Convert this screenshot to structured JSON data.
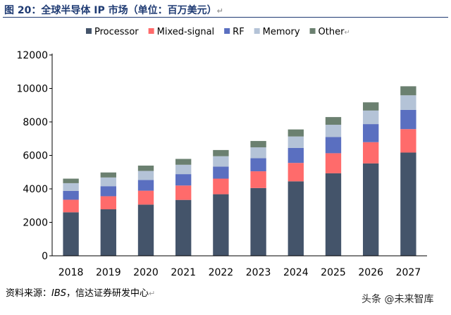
{
  "header": {
    "title": "图 20：全球半导体 IP 市场（单位：百万美元）",
    "title_mark": "↵"
  },
  "chart_data": {
    "type": "bar",
    "stacked": true,
    "categories": [
      "2018",
      "2019",
      "2020",
      "2021",
      "2022",
      "2023",
      "2024",
      "2025",
      "2026",
      "2027"
    ],
    "series": [
      {
        "name": "Processor",
        "color": "#44546a",
        "values": [
          2600,
          2780,
          3060,
          3340,
          3680,
          4050,
          4450,
          4930,
          5520,
          6170
        ]
      },
      {
        "name": "Mixed-signal",
        "color": "#ff6b6b",
        "values": [
          750,
          780,
          830,
          860,
          930,
          1000,
          1100,
          1200,
          1270,
          1400
        ]
      },
      {
        "name": "RF",
        "color": "#5a6fc0",
        "values": [
          530,
          600,
          640,
          680,
          720,
          780,
          900,
          970,
          1080,
          1150
        ]
      },
      {
        "name": "Memory",
        "color": "#b4c3d7",
        "values": [
          460,
          520,
          540,
          560,
          620,
          650,
          680,
          730,
          810,
          870
        ]
      },
      {
        "name": "Other",
        "color": "#6b8070",
        "values": [
          270,
          300,
          320,
          350,
          370,
          380,
          420,
          460,
          490,
          540
        ]
      }
    ],
    "ylim": [
      0,
      12000
    ],
    "yticks": [
      "0",
      "2000",
      "4000",
      "6000",
      "8000",
      "10000",
      "12000"
    ],
    "legend_position": "top",
    "legend_mark": "↵",
    "grid": false
  },
  "footer": {
    "source_label": "资料来源：",
    "source_name": "IBS",
    "source_rest": "，信达证券研发中心",
    "source_mark": "↵",
    "watermark": "头条 @未来智库"
  },
  "colors": {
    "title": "#1f3b73",
    "axis": "#000000"
  }
}
